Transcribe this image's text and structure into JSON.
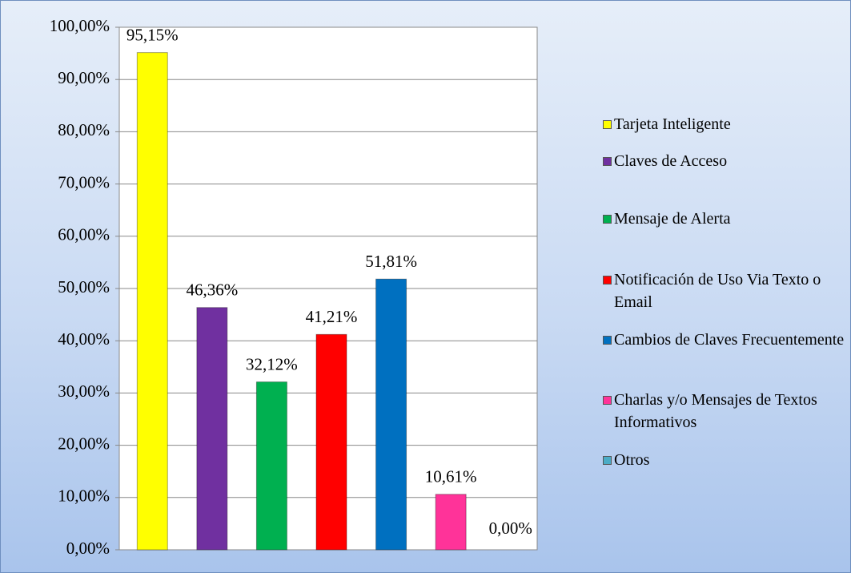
{
  "chart_data": {
    "type": "bar",
    "series": [
      {
        "name": "Tarjeta Inteligente",
        "color": "#ffff00",
        "values": [
          95.15
        ],
        "value_labels": [
          "95,15%"
        ]
      },
      {
        "name": "Claves de Acceso",
        "color": "#7030a0",
        "values": [
          46.36
        ],
        "value_labels": [
          "46,36%"
        ]
      },
      {
        "name": "Mensaje de Alerta",
        "color": "#00b050",
        "values": [
          32.12
        ],
        "value_labels": [
          "32,12%"
        ]
      },
      {
        "name": "Notificación de Uso Via Texto o Email",
        "color": "#ff0000",
        "values": [
          41.21
        ],
        "value_labels": [
          "41,21%"
        ]
      },
      {
        "name": "Cambios de Claves Frecuentemente",
        "color": "#0070c0",
        "values": [
          51.81
        ],
        "value_labels": [
          "51,81%"
        ]
      },
      {
        "name": "Charlas y/o Mensajes de Textos Informativos",
        "color": "#ff3399",
        "values": [
          10.61
        ],
        "value_labels": [
          "10,61%"
        ]
      },
      {
        "name": "Otros",
        "color": "#4bacc6",
        "values": [
          0
        ],
        "value_labels": [
          "0,00%"
        ]
      }
    ],
    "ylim": [
      0,
      100
    ],
    "yticks": [
      {
        "value": 0,
        "label": "0,00%"
      },
      {
        "value": 10,
        "label": "10,00%"
      },
      {
        "value": 20,
        "label": "20,00%"
      },
      {
        "value": 30,
        "label": "30,00%"
      },
      {
        "value": 40,
        "label": "40,00%"
      },
      {
        "value": 50,
        "label": "50,00%"
      },
      {
        "value": 60,
        "label": "60,00%"
      },
      {
        "value": 70,
        "label": "70,00%"
      },
      {
        "value": 80,
        "label": "80,00%"
      },
      {
        "value": 90,
        "label": "90,00%"
      },
      {
        "value": 100,
        "label": "100,00%"
      }
    ],
    "grid": true,
    "legend": "right"
  }
}
